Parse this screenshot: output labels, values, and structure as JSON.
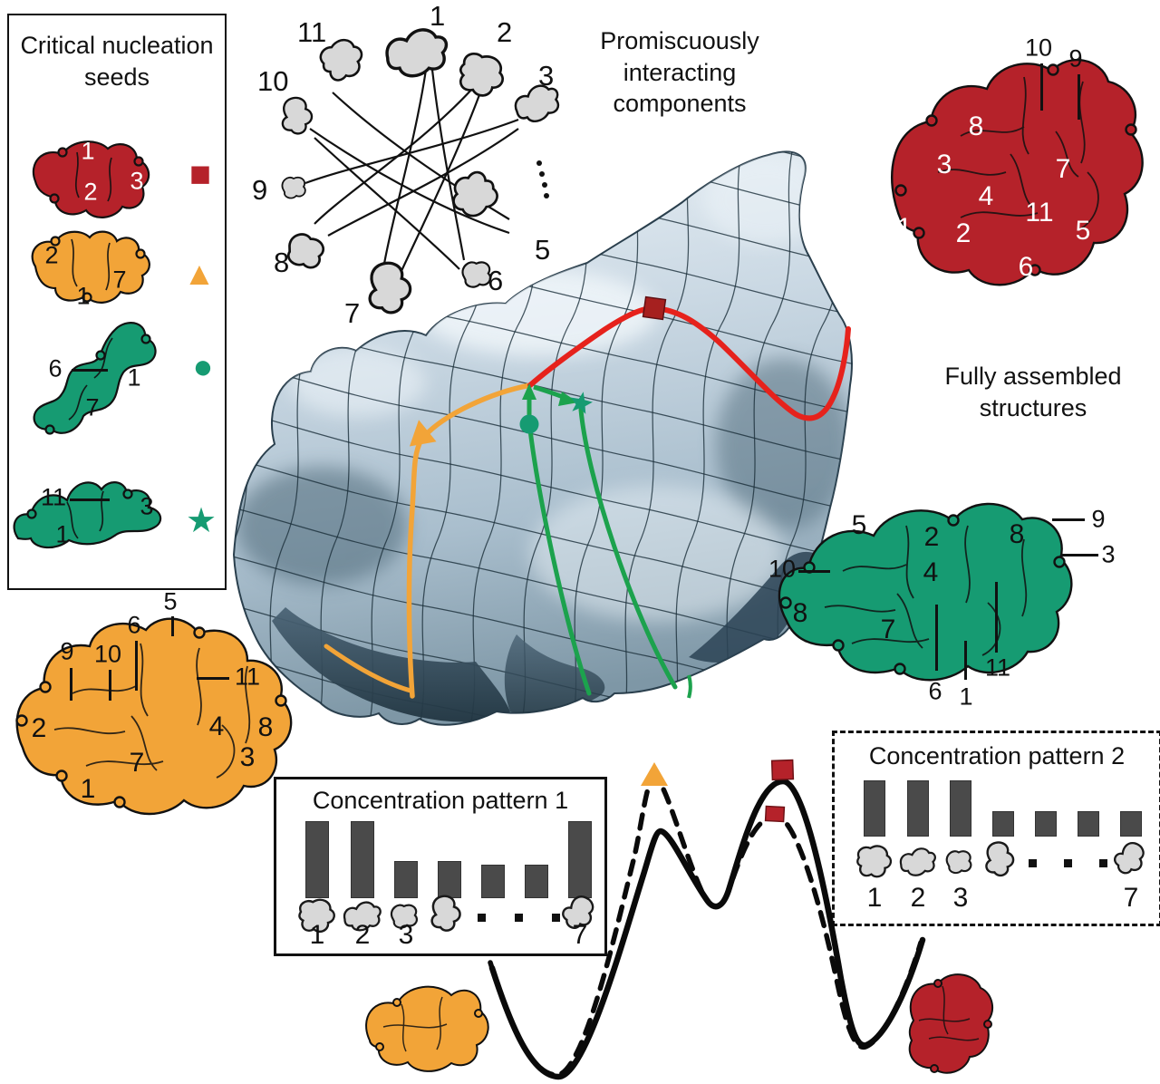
{
  "colors": {
    "red": "#B5222A",
    "red_path": "#E6221C",
    "orange": "#F2A438",
    "green_teal": "#169B72",
    "green_path": "#1CA24D",
    "gray_piece": "#D8D8D8",
    "bar_gray": "#4A4A4A",
    "surface_light": "#D3DEE8",
    "surface_dark": "#31495A"
  },
  "captions": {
    "promiscuous": "Promiscuously interacting components",
    "fully_assembled": "Fully assembled structures"
  },
  "seeds_box": {
    "title": "Critical nucleation seeds",
    "marker_glyphs": {
      "square": "■",
      "triangle": "▲",
      "circle": "●",
      "star": "★"
    },
    "seeds": [
      {
        "name": "red-seed",
        "marker": "square",
        "labels": [
          "1",
          "2",
          "3"
        ]
      },
      {
        "name": "orange-seed",
        "marker": "triangle",
        "labels": [
          "2",
          "7",
          "1"
        ]
      },
      {
        "name": "green-seed-a",
        "marker": "circle",
        "callout": "6",
        "labels": [
          "1",
          "7"
        ]
      },
      {
        "name": "green-seed-b",
        "marker": "star",
        "callout": "11",
        "labels": [
          "3",
          "1"
        ]
      }
    ]
  },
  "network": {
    "numbers": [
      "1",
      "2",
      "3",
      "5",
      "6",
      "7",
      "8",
      "9",
      "10",
      "11"
    ]
  },
  "red_structure": {
    "external": [
      "10",
      "9"
    ],
    "internal": [
      "8",
      "3",
      "4",
      "7",
      "1",
      "2",
      "11",
      "5",
      "6"
    ]
  },
  "green_structure": {
    "internal": [
      "5",
      "2",
      "8",
      "4",
      "8",
      "7"
    ],
    "external": [
      "9",
      "3",
      "10",
      "6",
      "1",
      "11"
    ]
  },
  "orange_structure": {
    "internal": [
      "2",
      "1",
      "7",
      "4",
      "8",
      "3"
    ],
    "external": [
      "5",
      "6",
      "9",
      "10",
      "11"
    ]
  },
  "patterns": [
    {
      "title": "Concentration pattern 1",
      "bars": [
        1,
        1,
        0.48,
        0.48,
        0.43,
        0.43,
        1
      ],
      "labels": [
        "1",
        "2",
        "3",
        "7"
      ]
    },
    {
      "title": "Concentration pattern 2",
      "bars": [
        1,
        1,
        1,
        0.45,
        0.45,
        0.45,
        0.45
      ],
      "labels": [
        "1",
        "2",
        "3",
        "7"
      ]
    }
  ]
}
